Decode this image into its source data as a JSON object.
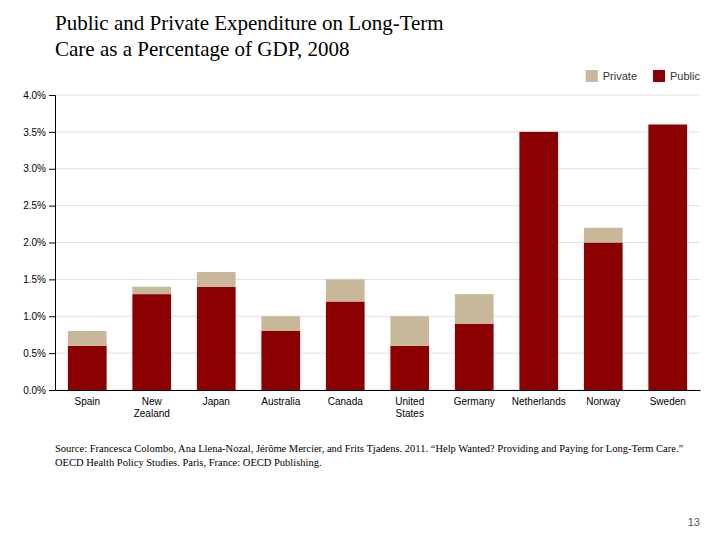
{
  "chart_data": {
    "type": "bar",
    "stacked": true,
    "title": "Public and Private Expenditure on Long-Term\nCare as a Percentage of GDP, 2008",
    "categories": [
      "Spain",
      "New\nZealand",
      "Japan",
      "Australia",
      "Canada",
      "United\nStates",
      "Germany",
      "Netherlands",
      "Norway",
      "Sweden"
    ],
    "series": [
      {
        "name": "Public",
        "color": "#8B0000",
        "values": [
          0.006,
          0.013,
          0.014,
          0.008,
          0.012,
          0.006,
          0.009,
          0.035,
          0.02,
          0.036
        ]
      },
      {
        "name": "Private",
        "color": "#C8B89A",
        "values": [
          0.002,
          0.001,
          0.002,
          0.002,
          0.003,
          0.004,
          0.004,
          0.0,
          0.002,
          0.0
        ]
      }
    ],
    "ylim": [
      0,
      0.04
    ],
    "yticks": [
      {
        "value": 0,
        "label": "0.0%"
      },
      {
        "value": 0.005,
        "label": "0.5%"
      },
      {
        "value": 0.01,
        "label": "1.0%"
      },
      {
        "value": 0.015,
        "label": "1.5%"
      },
      {
        "value": 0.02,
        "label": "2.0%"
      },
      {
        "value": 0.025,
        "label": "2.5%"
      },
      {
        "value": 0.03,
        "label": "3.0%"
      },
      {
        "value": 0.035,
        "label": "3.5%"
      },
      {
        "value": 0.04,
        "label": "4.0%"
      }
    ],
    "grid": true,
    "legend": "upper right",
    "annotations": [
      "Source: Francesca Colombo, Ana Llena-Nozal, Jérôme Mercier, and Frits Tjadens. 2011. “Help Wanted? Providing and Paying for Long-Term Care.” OECD Health Policy Studies. Paris, France: OECD Publishing.",
      "13"
    ]
  }
}
